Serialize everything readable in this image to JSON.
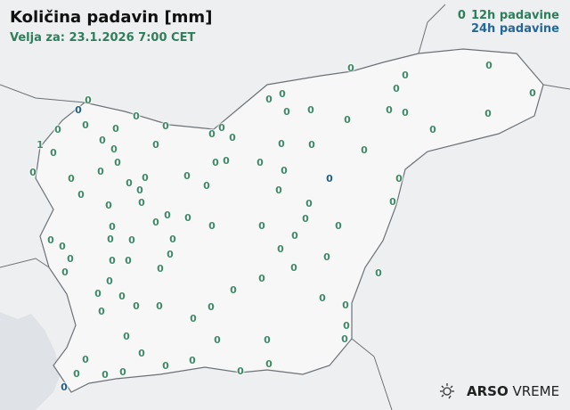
{
  "header": {
    "title": "Količina padavin [mm]",
    "subtitle": "Velja za: 23.1.2026 7:00 CET"
  },
  "legend": {
    "sample_value": "0",
    "label_12h": "12h padavine",
    "label_24h": "24h padavine",
    "color_12h": "#2e7d5b",
    "color_24h": "#24689a"
  },
  "stations_12h_values": [
    "0",
    "0",
    "0",
    "0",
    "1",
    "0",
    "0",
    "0",
    "0",
    "0",
    "0",
    "0",
    "0",
    "0",
    "0",
    "0",
    "0",
    "0",
    "0",
    "0",
    "0",
    "0",
    "0",
    "0",
    "0",
    "0",
    "0",
    "0",
    "0",
    "0",
    "0",
    "0",
    "0",
    "0",
    "0",
    "0",
    "0",
    "0",
    "0",
    "0",
    "0",
    "0",
    "0",
    "0",
    "0",
    "0",
    "0",
    "0",
    "0",
    "0",
    "0",
    "0",
    "0",
    "0",
    "0",
    "0",
    "0",
    "0",
    "0",
    "0",
    "0",
    "0",
    "0",
    "0",
    "0",
    "0",
    "0",
    "0",
    "0",
    "0",
    "0",
    "0",
    "0",
    "0",
    "0",
    "0",
    "0",
    "0",
    "0",
    "0",
    "0",
    "0",
    "0",
    "0",
    "0",
    "0",
    "0",
    "0",
    "0",
    "0",
    "0",
    "0",
    "0",
    "0",
    "0",
    "0",
    "0",
    "0",
    "0",
    "0",
    "0"
  ],
  "stations_24h_values": [
    "0",
    "0",
    "0"
  ],
  "logo": {
    "brand": "ARSO",
    "product": "VREME",
    "icon": "sun-cloud-icon"
  }
}
